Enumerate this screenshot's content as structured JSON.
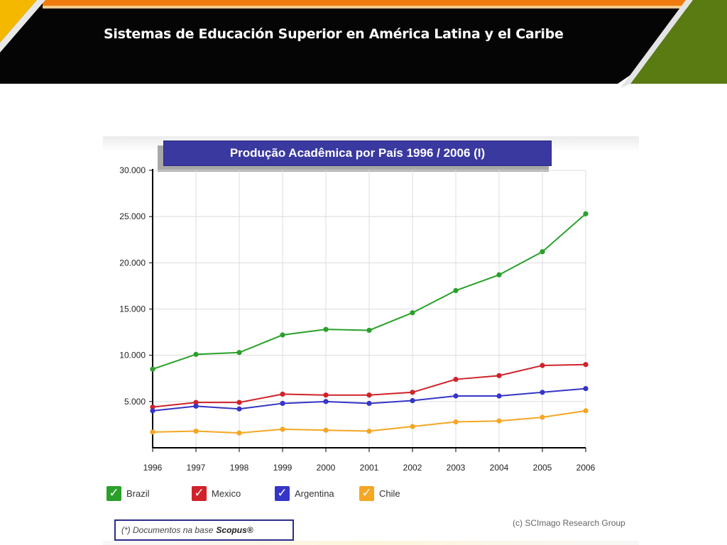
{
  "slide": {
    "title": "Sistemas de Educación Superior en América Latina y el Caribe"
  },
  "colors": {
    "banner_black": "#050505",
    "orange_stripe": "#f07a0e",
    "yellow_corner": "#f5b800",
    "green_corner": "#5a7a12",
    "title_box": "#3a39a0"
  },
  "chart_data": {
    "type": "line",
    "title": "Produção Acadêmica por País  1996 / 2006 (I)",
    "x": [
      "1996",
      "1997",
      "1998",
      "1999",
      "2000",
      "2001",
      "2002",
      "2003",
      "2004",
      "2005",
      "2006"
    ],
    "ylim": [
      0,
      30000
    ],
    "yticks": [
      5000,
      10000,
      15000,
      20000,
      25000,
      30000
    ],
    "ytick_labels": [
      "5.000",
      "10.000",
      "15.000",
      "20.000",
      "25.000",
      "30.000"
    ],
    "grid": true,
    "series": [
      {
        "name": "Brazil",
        "color": "#2aa02a",
        "values": [
          8500,
          10100,
          10300,
          12200,
          12800,
          12700,
          14600,
          17000,
          18700,
          21200,
          25300
        ]
      },
      {
        "name": "Mexico",
        "color": "#d0222a",
        "values": [
          4400,
          4900,
          4900,
          5800,
          5700,
          5700,
          6000,
          7400,
          7800,
          8900,
          9000
        ]
      },
      {
        "name": "Argentina",
        "color": "#3535c8",
        "values": [
          4000,
          4500,
          4200,
          4800,
          5000,
          4800,
          5100,
          5600,
          5600,
          6000,
          6400
        ]
      },
      {
        "name": "Chile",
        "color": "#f5a623",
        "values": [
          1700,
          1800,
          1600,
          2000,
          1900,
          1800,
          2300,
          2800,
          2900,
          3300,
          4000
        ]
      }
    ],
    "legend_position": "bottom-left",
    "footnote": "(*) Documentos na base",
    "footnote_source": "Scopus®",
    "credit": "(c) SCImago Research Group"
  }
}
